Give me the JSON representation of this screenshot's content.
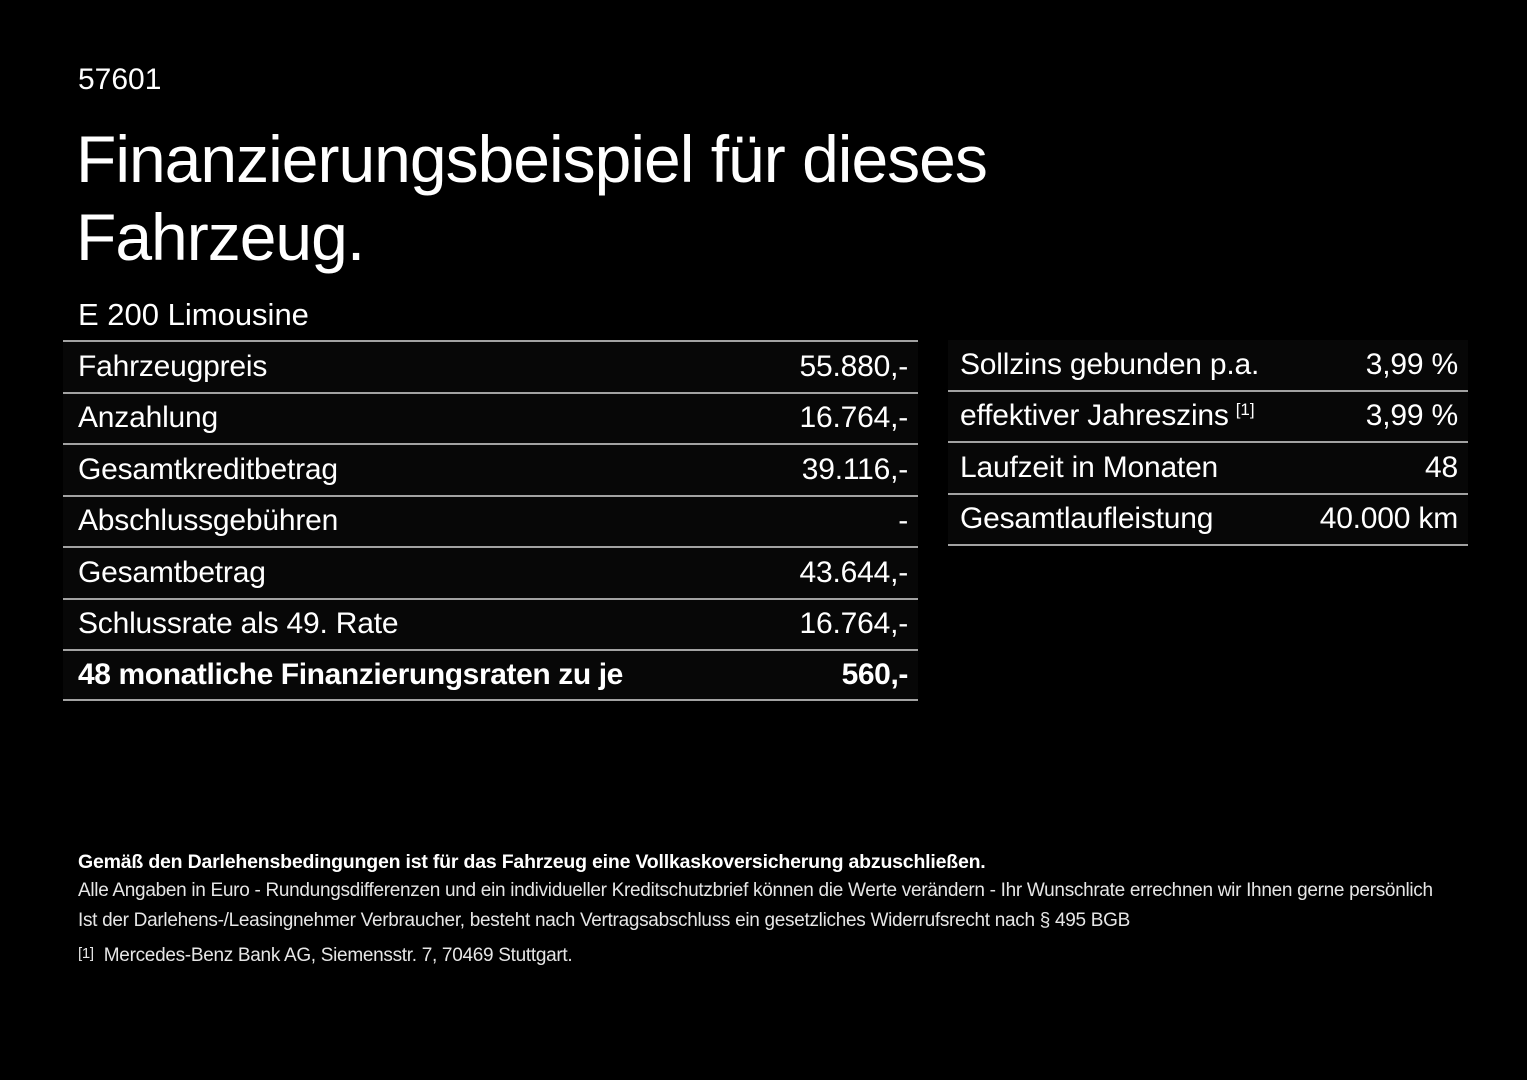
{
  "page": {
    "code": "57601",
    "title_line1": "Finanzierungsbeispiel für dieses",
    "title_line2": "Fahrzeug.",
    "model": "E 200 Limousine"
  },
  "left_table": {
    "rows": [
      {
        "label": "Fahrzeugpreis",
        "value": "55.880,-"
      },
      {
        "label": "Anzahlung",
        "value": "16.764,-"
      },
      {
        "label": "Gesamtkreditbetrag",
        "value": "39.116,-"
      },
      {
        "label": "Abschlussgebühren",
        "value": "-"
      },
      {
        "label": "Gesamtbetrag",
        "value": "43.644,-"
      },
      {
        "label": "Schlussrate als 49. Rate",
        "value": "16.764,-"
      },
      {
        "label": "48 monatliche Finanzierungsraten zu je",
        "value": "560,-"
      }
    ]
  },
  "right_table": {
    "rows": [
      {
        "label": "Sollzins gebunden p.a.",
        "value": "3,99 %"
      },
      {
        "label": "effektiver Jahreszins",
        "label_sup": "[1]",
        "value": "3,99 %"
      },
      {
        "label": "Laufzeit in Monaten",
        "value": "48"
      },
      {
        "label": "Gesamtlaufleistung",
        "value": "40.000 km"
      }
    ]
  },
  "footer": {
    "insurance_note_bold": "Gemäß den Darlehensbedingungen ist für das Fahrzeug eine Vollkaskoversicherung abzuschließen.",
    "disclaimer_line": "Alle Angaben in Euro - Rundungsdifferenzen und ein individueller Kreditschutzbrief können die Werte verändern - Ihr Wunschrate errechnen wir Ihnen gerne persönlich",
    "withdrawal_line": "Ist der Darlehens-/Leasingnehmer Verbraucher, besteht nach Vertragsabschluss ein gesetzliches Widerrufsrecht nach § 495 BGB",
    "ref_marker": "[1]",
    "ref_text": "Mercedes-Benz Bank AG, Siemensstr. 7, 70469 Stuttgart."
  },
  "colors": {
    "background": "#000000",
    "text": "#ffffff",
    "separator": "#a2a2a2"
  }
}
